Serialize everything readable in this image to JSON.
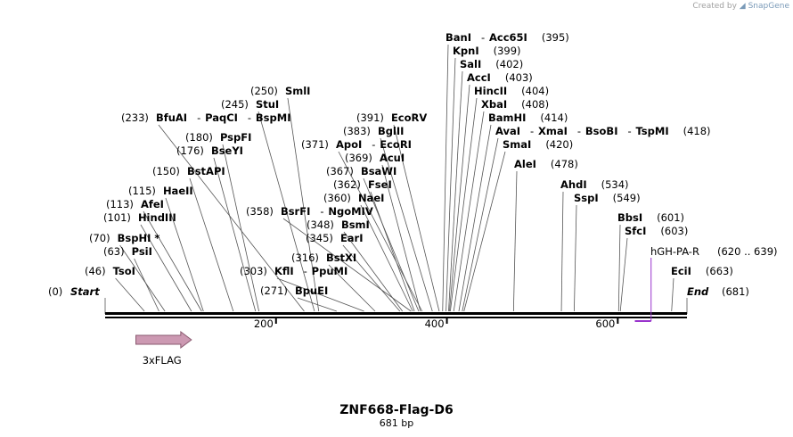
{
  "credit": {
    "prefix": "Created by",
    "brand": "SnapGene"
  },
  "title": "ZNF668-Flag-D6",
  "length_label": "681 bp",
  "sequence_length": 681,
  "ticks": [
    {
      "pos": 200,
      "label": "200"
    },
    {
      "pos": 400,
      "label": "400"
    },
    {
      "pos": 600,
      "label": "600"
    }
  ],
  "start_marker": {
    "pos": 0,
    "pos_label": "(0)",
    "name": "Start"
  },
  "end_marker": {
    "pos": 681,
    "pos_label": "(681)",
    "name": "End"
  },
  "features": [
    {
      "name": "3xFLAG",
      "type": "arrow-right",
      "start": 36,
      "end": 101,
      "color": "#cc99b2",
      "stroke": "#8a5a70"
    }
  ],
  "primers": [
    {
      "name": "hGH-PA-R",
      "range": "(620 .. 639)",
      "start": 620,
      "end": 639,
      "color": "#9933cc"
    }
  ],
  "sites": [
    {
      "pos": 46,
      "pos_label": "(46)",
      "parts": [
        "TsoI"
      ]
    },
    {
      "pos": 63,
      "pos_label": "(63)",
      "parts": [
        "PsiI"
      ]
    },
    {
      "pos": 70,
      "pos_label": "(70)",
      "parts": [
        "BspHI *"
      ]
    },
    {
      "pos": 101,
      "pos_label": "(101)",
      "parts": [
        "HindIII"
      ]
    },
    {
      "pos": 113,
      "pos_label": "(113)",
      "parts": [
        "AfeI"
      ]
    },
    {
      "pos": 115,
      "pos_label": "(115)",
      "parts": [
        "HaeII"
      ]
    },
    {
      "pos": 150,
      "pos_label": "(150)",
      "parts": [
        "BstAPI"
      ]
    },
    {
      "pos": 176,
      "pos_label": "(176)",
      "parts": [
        "BseYI"
      ]
    },
    {
      "pos": 180,
      "pos_label": "(180)",
      "parts": [
        "PspFI"
      ]
    },
    {
      "pos": 233,
      "pos_label": "(233)",
      "parts": [
        "BfuAI",
        "PaqCI",
        "BspMI"
      ]
    },
    {
      "pos": 245,
      "pos_label": "(245)",
      "parts": [
        "StuI"
      ]
    },
    {
      "pos": 250,
      "pos_label": "(250)",
      "parts": [
        "SmlI"
      ]
    },
    {
      "pos": 271,
      "pos_label": "(271)",
      "parts": [
        "BpuEI"
      ]
    },
    {
      "pos": 303,
      "pos_label": "(303)",
      "parts": [
        "KflI",
        "PpuMI"
      ]
    },
    {
      "pos": 316,
      "pos_label": "(316)",
      "parts": [
        "BstXI"
      ]
    },
    {
      "pos": 345,
      "pos_label": "(345)",
      "parts": [
        "EarI"
      ]
    },
    {
      "pos": 348,
      "pos_label": "(348)",
      "parts": [
        "BsmI"
      ]
    },
    {
      "pos": 358,
      "pos_label": "(358)",
      "parts": [
        "BsrFI",
        "NgoMIV"
      ]
    },
    {
      "pos": 360,
      "pos_label": "(360)",
      "parts": [
        "NaeI"
      ]
    },
    {
      "pos": 362,
      "pos_label": "(362)",
      "parts": [
        "FseI"
      ]
    },
    {
      "pos": 367,
      "pos_label": "(367)",
      "parts": [
        "BsaWI"
      ]
    },
    {
      "pos": 369,
      "pos_label": "(369)",
      "parts": [
        "AcuI"
      ]
    },
    {
      "pos": 371,
      "pos_label": "(371)",
      "parts": [
        "ApoI",
        "EcoRI"
      ]
    },
    {
      "pos": 383,
      "pos_label": "(383)",
      "parts": [
        "BglII"
      ]
    },
    {
      "pos": 391,
      "pos_label": "(391)",
      "parts": [
        "EcoRV"
      ]
    },
    {
      "pos": 395,
      "pos_label": "(395)",
      "parts": [
        "BanI",
        "Acc65I"
      ]
    },
    {
      "pos": 399,
      "pos_label": "(399)",
      "parts": [
        "KpnI"
      ]
    },
    {
      "pos": 402,
      "pos_label": "(402)",
      "parts": [
        "SalI"
      ]
    },
    {
      "pos": 403,
      "pos_label": "(403)",
      "parts": [
        "AccI"
      ]
    },
    {
      "pos": 404,
      "pos_label": "(404)",
      "parts": [
        "HincII"
      ]
    },
    {
      "pos": 408,
      "pos_label": "(408)",
      "parts": [
        "XbaI"
      ]
    },
    {
      "pos": 414,
      "pos_label": "(414)",
      "parts": [
        "BamHI"
      ]
    },
    {
      "pos": 418,
      "pos_label": "(418)",
      "parts": [
        "AvaI",
        "XmaI",
        "BsoBI",
        "TspMI"
      ]
    },
    {
      "pos": 420,
      "pos_label": "(420)",
      "parts": [
        "SmaI"
      ]
    },
    {
      "pos": 478,
      "pos_label": "(478)",
      "parts": [
        "AleI"
      ]
    },
    {
      "pos": 534,
      "pos_label": "(534)",
      "parts": [
        "AhdI"
      ]
    },
    {
      "pos": 549,
      "pos_label": "(549)",
      "parts": [
        "SspI"
      ]
    },
    {
      "pos": 601,
      "pos_label": "(601)",
      "parts": [
        "BbsI"
      ]
    },
    {
      "pos": 603,
      "pos_label": "(603)",
      "parts": [
        "SfcI"
      ]
    },
    {
      "pos": 663,
      "pos_label": "(663)",
      "parts": [
        "EciI"
      ]
    }
  ]
}
